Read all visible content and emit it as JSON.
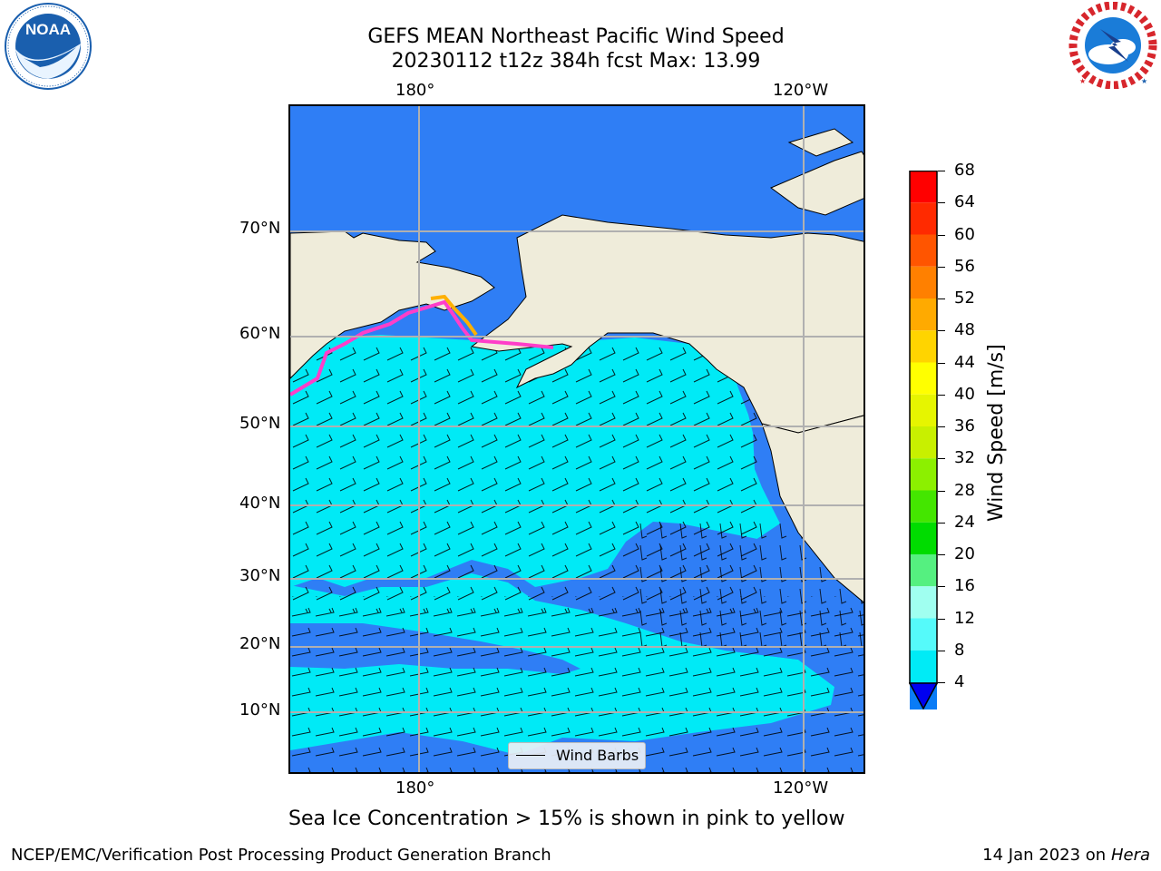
{
  "header": {
    "title_line1": "GEFS MEAN Northeast Pacific Wind Speed",
    "title_line2": "20230112 t12z 384h fcst   Max: 13.99"
  },
  "logos": {
    "left": {
      "name": "noaa-logo",
      "text": "NOAA",
      "ring_text": "NATIONAL OCEANIC AND ATMOSPHERIC ADMINISTRATION · U.S. DEPARTMENT OF COMMERCE",
      "color": "#1a5fae"
    },
    "right": {
      "name": "nws-logo",
      "ring_text": "NATIONAL WEATHER SERVICE",
      "color": "#d7262c"
    }
  },
  "map": {
    "lon_labels_top": [
      "180°",
      "120°W"
    ],
    "lon_labels_bottom": [
      "180°",
      "120°W"
    ],
    "lat_labels": [
      "70°N",
      "60°N",
      "50°N",
      "40°N",
      "30°N",
      "20°N",
      "10°N"
    ],
    "legend_label": "Wind Barbs",
    "colors": {
      "land": "#efecda",
      "calm": "#2f7ef5",
      "wind_8_12": "#00eaf6",
      "ice": [
        "#ff3ec9",
        "#ffb000",
        "#ffee00"
      ]
    }
  },
  "colorbar": {
    "label": "Wind Speed [m/s]",
    "ticks": [
      "68",
      "64",
      "60",
      "56",
      "52",
      "48",
      "44",
      "40",
      "36",
      "32",
      "28",
      "24",
      "20",
      "16",
      "12",
      "8",
      "4"
    ],
    "bins_top_to_bottom": [
      "#ff0000",
      "#ff2a00",
      "#ff5500",
      "#ff8000",
      "#ffaa00",
      "#ffd400",
      "#ffff00",
      "#e6f500",
      "#c8f000",
      "#8cf000",
      "#44e600",
      "#00dc00",
      "#55f080",
      "#a0fff0",
      "#55fafa",
      "#00ebf6",
      "#0a7cf6"
    ],
    "extend_color": "#0000f0"
  },
  "caption": "Sea Ice Concentration > 15% is shown in pink to yellow",
  "footer": {
    "left": "NCEP/EMC/Verification Post Processing Product Generation Branch",
    "right_date": "14 Jan 2023 on ",
    "right_host": "Hera"
  }
}
